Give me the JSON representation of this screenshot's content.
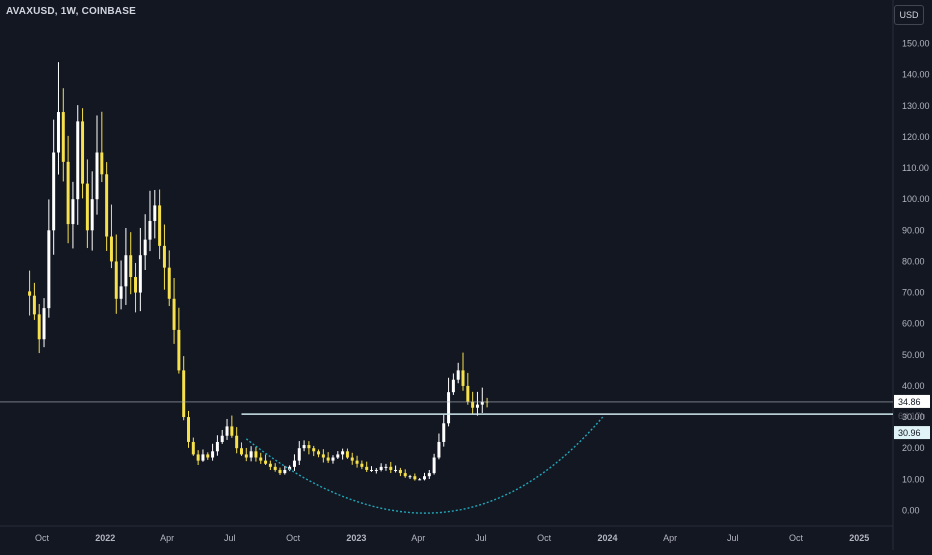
{
  "header": {
    "symbol_title": "AVAXUSD, 1W, COINBASE",
    "currency": "USD"
  },
  "colors": {
    "background": "#131722",
    "up": "#ffffff",
    "down": "#f6e04b",
    "level_line": "#cfe9ef",
    "arc": "#21a6b8",
    "price_line": "#b2b5be",
    "price_label_bg": "#e0f3f6"
  },
  "chart_data": {
    "type": "candlestick",
    "title": "AVAXUSD, 1W, COINBASE",
    "ylim": [
      -5,
      155
    ],
    "y_ticks": [
      0,
      10,
      20,
      30,
      40,
      50,
      60,
      70,
      80,
      90,
      100,
      110,
      120,
      130,
      140,
      150
    ],
    "y_tick_labels": [
      "0.00",
      "10.00",
      "20.00",
      "30.00",
      "40.00",
      "50.00",
      "60.00",
      "70.00",
      "80.00",
      "90.00",
      "100.00",
      "110.00",
      "120.00",
      "130.00",
      "140.00",
      "150.00"
    ],
    "x_ticks": [
      {
        "label": "Oct",
        "date": "2021-10-01",
        "bold": false
      },
      {
        "label": "2022",
        "date": "2022-01-01",
        "bold": true
      },
      {
        "label": "Apr",
        "date": "2022-04-01",
        "bold": false
      },
      {
        "label": "Jul",
        "date": "2022-07-01",
        "bold": false
      },
      {
        "label": "Oct",
        "date": "2022-10-01",
        "bold": false
      },
      {
        "label": "2023",
        "date": "2023-01-01",
        "bold": true
      },
      {
        "label": "Apr",
        "date": "2023-04-01",
        "bold": false
      },
      {
        "label": "Jul",
        "date": "2023-07-01",
        "bold": false
      },
      {
        "label": "Oct",
        "date": "2023-10-01",
        "bold": false
      },
      {
        "label": "2024",
        "date": "2024-01-01",
        "bold": true
      },
      {
        "label": "Apr",
        "date": "2024-04-01",
        "bold": false
      },
      {
        "label": "Jul",
        "date": "2024-07-01",
        "bold": false
      },
      {
        "label": "Oct",
        "date": "2024-10-01",
        "bold": false
      },
      {
        "label": "2025",
        "date": "2025-01-01",
        "bold": true
      }
    ],
    "x_range": [
      "2021-08-01",
      "2025-02-19"
    ],
    "first_week": "2021-09-13",
    "anchors": [
      [
        0,
        69
      ],
      [
        1,
        63
      ],
      [
        2,
        55
      ],
      [
        3,
        65
      ],
      [
        4,
        90
      ],
      [
        5,
        115
      ],
      [
        6,
        128
      ],
      [
        7,
        112
      ],
      [
        8,
        92
      ],
      [
        9,
        100
      ],
      [
        10,
        125
      ],
      [
        11,
        105
      ],
      [
        12,
        90
      ],
      [
        13,
        100
      ],
      [
        14,
        115
      ],
      [
        15,
        108
      ],
      [
        16,
        88
      ],
      [
        17,
        80
      ],
      [
        18,
        68
      ],
      [
        19,
        72
      ],
      [
        20,
        82
      ],
      [
        21,
        75
      ],
      [
        22,
        70
      ],
      [
        23,
        82
      ],
      [
        24,
        87
      ],
      [
        25,
        93
      ],
      [
        26,
        98
      ],
      [
        27,
        85
      ],
      [
        28,
        78
      ],
      [
        29,
        68
      ],
      [
        30,
        58
      ],
      [
        31,
        45
      ],
      [
        32,
        30
      ],
      [
        33,
        22
      ],
      [
        34,
        18
      ],
      [
        35,
        16
      ],
      [
        36,
        18
      ],
      [
        37,
        17
      ],
      [
        38,
        19
      ],
      [
        39,
        22
      ],
      [
        40,
        24
      ],
      [
        41,
        27
      ],
      [
        42,
        24
      ],
      [
        43,
        20
      ],
      [
        44,
        18
      ],
      [
        45,
        17
      ],
      [
        46,
        19
      ],
      [
        47,
        17
      ],
      [
        48,
        16
      ],
      [
        49,
        15
      ],
      [
        50,
        14
      ],
      [
        51,
        13
      ],
      [
        52,
        12
      ],
      [
        53,
        13
      ],
      [
        54,
        14
      ],
      [
        55,
        16
      ],
      [
        56,
        20
      ],
      [
        57,
        21
      ],
      [
        58,
        20
      ],
      [
        59,
        19
      ],
      [
        60,
        18
      ],
      [
        61,
        17
      ],
      [
        62,
        16
      ],
      [
        63,
        17
      ],
      [
        64,
        18
      ],
      [
        65,
        19
      ],
      [
        66,
        17
      ],
      [
        67,
        16
      ],
      [
        68,
        15
      ],
      [
        69,
        14
      ],
      [
        70,
        13
      ],
      [
        71,
        13
      ],
      [
        72,
        13
      ],
      [
        73,
        14
      ],
      [
        74,
        14
      ],
      [
        75,
        13
      ],
      [
        76,
        13
      ],
      [
        77,
        12
      ],
      [
        78,
        11
      ],
      [
        79,
        11
      ],
      [
        80,
        10
      ],
      [
        81,
        10
      ],
      [
        82,
        11
      ],
      [
        83,
        12
      ],
      [
        84,
        17
      ],
      [
        85,
        22
      ],
      [
        86,
        28
      ],
      [
        87,
        38
      ],
      [
        88,
        42
      ],
      [
        89,
        45
      ],
      [
        90,
        40
      ],
      [
        91,
        35
      ],
      [
        92,
        33
      ],
      [
        93,
        34
      ],
      [
        94,
        35
      ],
      [
        95,
        34.86
      ]
    ],
    "horizontal_levels": [
      {
        "price": 34.86,
        "label": "34.86",
        "style": "current-price"
      },
      {
        "price": 30.96,
        "label": "30.96",
        "style": "support",
        "start_date": "2022-07-18"
      }
    ],
    "countdown_label": "6d 17h",
    "arc": {
      "start": [
        "2022-07-25",
        23
      ],
      "control": [
        "2023-05-15",
        -28
      ],
      "end": [
        "2023-12-25",
        30
      ]
    }
  }
}
